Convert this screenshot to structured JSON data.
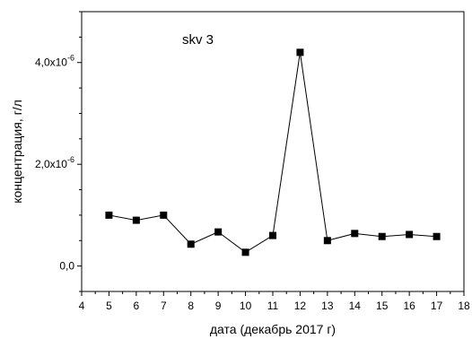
{
  "chart_data": {
    "type": "line",
    "annotation": "skv 3",
    "xlabel": "дата (декабрь 2017 г)",
    "ylabel": "концентрация, г/л",
    "xlim": [
      4,
      18
    ],
    "ylim": [
      -5e-07,
      5e-06
    ],
    "x_ticks": [
      4,
      5,
      6,
      7,
      8,
      9,
      10,
      11,
      12,
      13,
      14,
      15,
      16,
      17,
      18
    ],
    "y_ticks": [
      {
        "value": 0,
        "mantissa": "0,0",
        "exponent": ""
      },
      {
        "value": 2e-06,
        "mantissa": "2,0x10",
        "exponent": "-6"
      },
      {
        "value": 4e-06,
        "mantissa": "4,0x10",
        "exponent": "-6"
      }
    ],
    "grid": false,
    "marker": "square",
    "series": [
      {
        "x": [
          5,
          6,
          7,
          8,
          9,
          10,
          11,
          12,
          13,
          14,
          15,
          16,
          17
        ],
        "y": [
          1e-06,
          9e-07,
          1e-06,
          4.3e-07,
          6.7e-07,
          2.7e-07,
          6e-07,
          4.2e-06,
          5e-07,
          6.4e-07,
          5.8e-07,
          6.2e-07,
          5.8e-07
        ]
      }
    ]
  }
}
